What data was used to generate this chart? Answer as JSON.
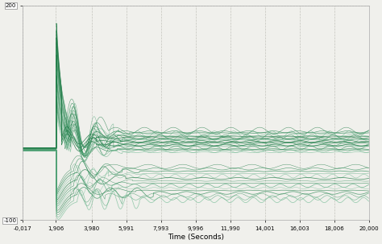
{
  "xlim": [
    -0.017,
    20.0
  ],
  "ylim": [
    -100,
    200
  ],
  "xlabel": "Time (Seconds)",
  "xticks": [
    -0.017,
    1.906,
    3.98,
    5.991,
    7.993,
    9.996,
    11.99,
    14.001,
    16.003,
    18.006,
    20.0
  ],
  "xtick_labels": [
    "-0,017",
    "1,906",
    "3,980",
    "5,991",
    "7,993",
    "9,996",
    "11,990",
    "14,001",
    "16,003",
    "18,006",
    "20,000"
  ],
  "ytick_top": 200,
  "ytick_bottom": -100,
  "xlabel_text": "Time (Seconds)",
  "line_color_dark": "#1e7a45",
  "line_color_mid": "#2e8b57",
  "line_color_light": "#5aaa80",
  "line_color_pale": "#7bbf9a",
  "background_color": "#f0f0ec",
  "grid_color": "#c0c0b8",
  "event_time": 1.95,
  "n_upper_cluster": 20,
  "n_lower_cluster": 15,
  "n_total": 35
}
